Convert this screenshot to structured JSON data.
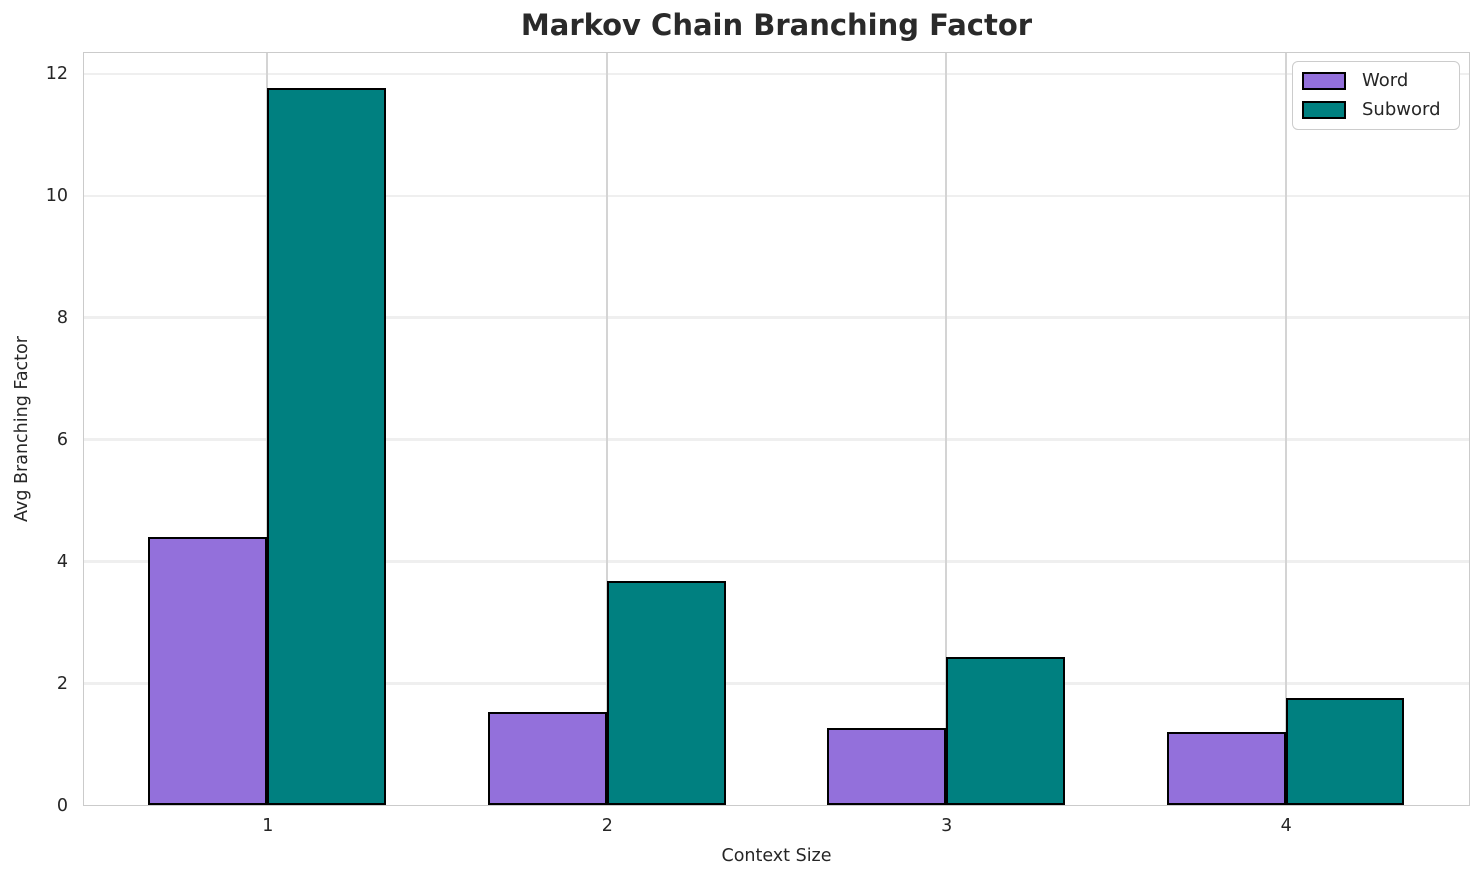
{
  "chart_data": {
    "type": "bar",
    "title": "Markov Chain Branching Factor",
    "xlabel": "Context Size",
    "ylabel": "Avg Branching Factor",
    "categories": [
      "1",
      "2",
      "3",
      "4"
    ],
    "series": [
      {
        "name": "Word",
        "color": "#9370DB",
        "values": [
          4.4,
          1.53,
          1.27,
          1.2
        ]
      },
      {
        "name": "Subword",
        "color": "#008080",
        "values": [
          11.76,
          3.68,
          2.43,
          1.76
        ]
      }
    ],
    "bar_edge_color": "#000000",
    "ylim": [
      0,
      12.34
    ],
    "yticks": [
      0,
      2,
      4,
      6,
      8,
      10,
      12
    ],
    "grid": true,
    "legend_position": "upper right"
  }
}
